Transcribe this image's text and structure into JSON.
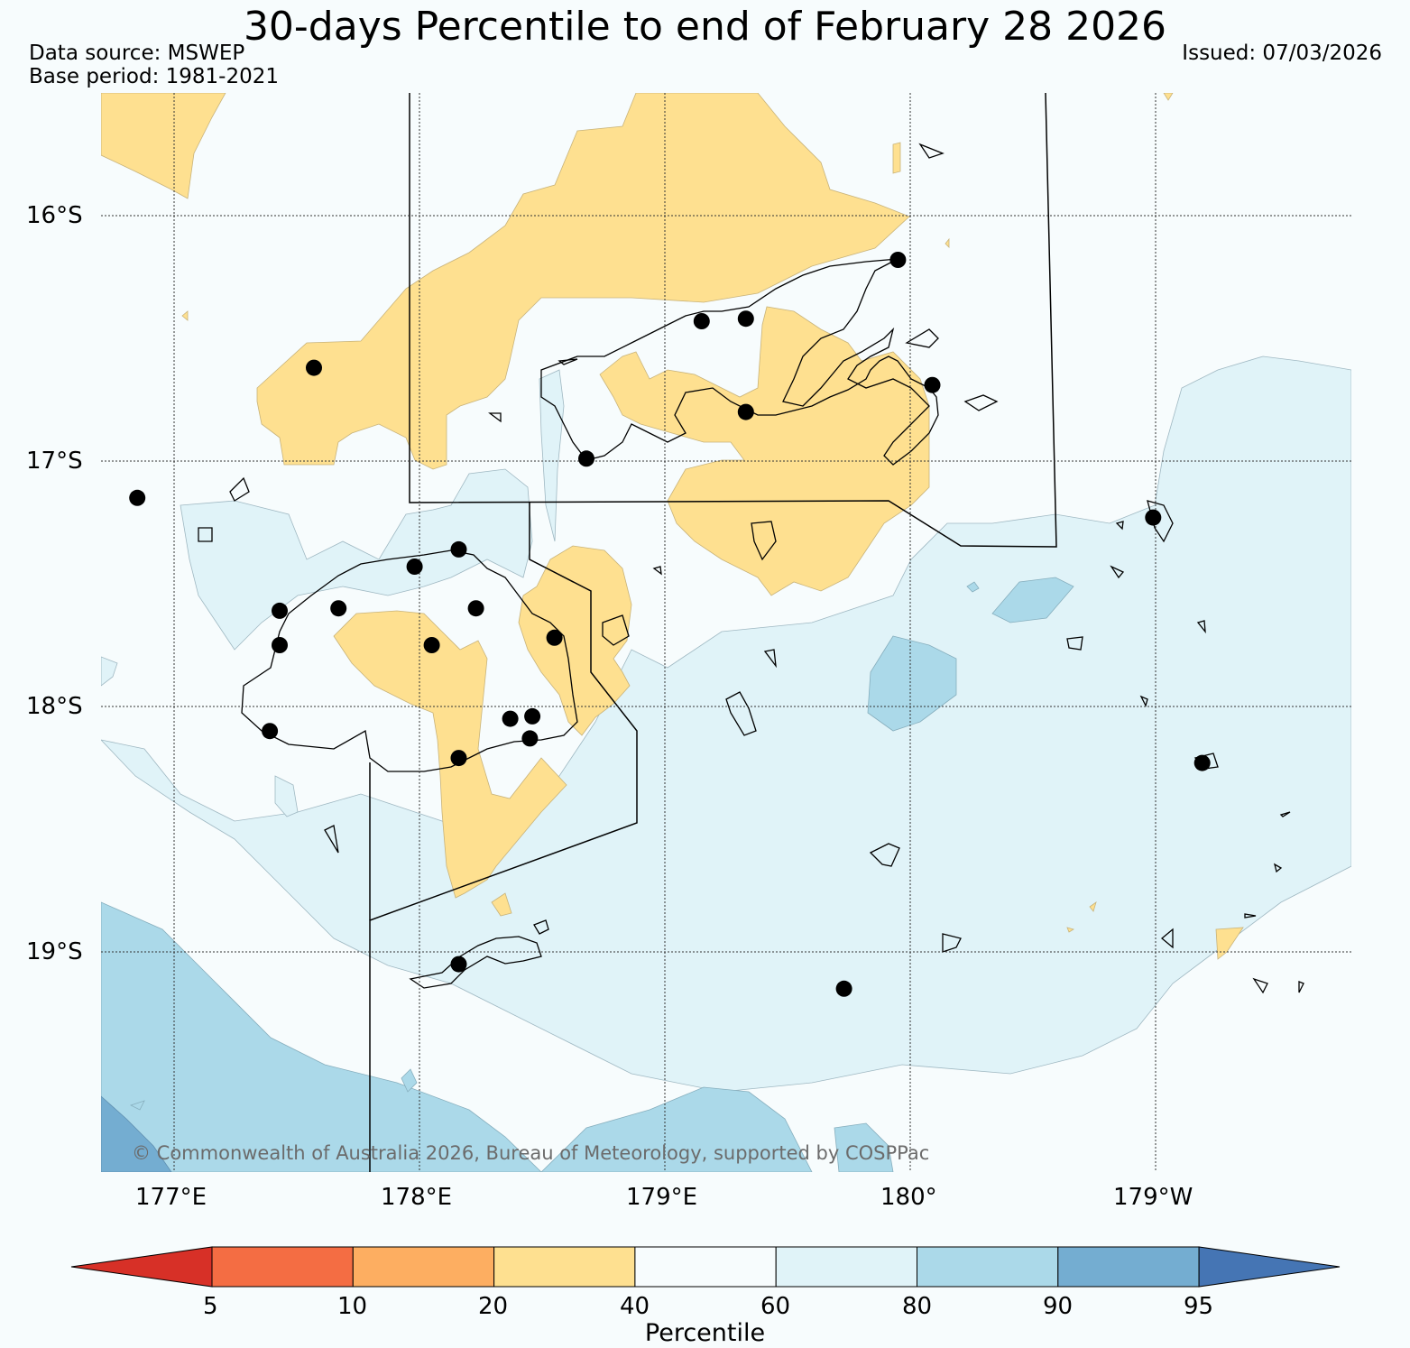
{
  "header": {
    "title": "30-days Percentile to end of February 28 2026",
    "data_source": "Data source: MSWEP",
    "base_period": "Base period: 1981-2021",
    "issued": "Issued: 07/03/2026"
  },
  "map": {
    "lat_labels": [
      "16°S",
      "17°S",
      "18°S",
      "19°S"
    ],
    "lon_labels": [
      "177°E",
      "178°E",
      "179°E",
      "180°",
      "179°W"
    ],
    "copyright": "© Commonwealth of Australia 2026, Bureau of Meteorology, supported by COSPPac",
    "stations": [
      {
        "lon": 177.57,
        "lat": -16.62
      },
      {
        "lon": 179.15,
        "lat": -16.43
      },
      {
        "lon": 179.33,
        "lat": -16.42
      },
      {
        "lon": 179.95,
        "lat": -16.18
      },
      {
        "lon": 179.33,
        "lat": -16.8
      },
      {
        "lon": 180.09,
        "lat": -16.69
      },
      {
        "lon": 178.68,
        "lat": -16.99
      },
      {
        "lon": 176.85,
        "lat": -17.15
      },
      {
        "lon": 178.16,
        "lat": -17.36
      },
      {
        "lon": 177.98,
        "lat": -17.43
      },
      {
        "lon": 177.43,
        "lat": -17.61
      },
      {
        "lon": 177.67,
        "lat": -17.6
      },
      {
        "lon": 178.23,
        "lat": -17.6
      },
      {
        "lon": 177.43,
        "lat": -17.75
      },
      {
        "lon": 178.05,
        "lat": -17.75
      },
      {
        "lon": 178.55,
        "lat": -17.72
      },
      {
        "lon": 177.39,
        "lat": -18.1
      },
      {
        "lon": 178.37,
        "lat": -18.05
      },
      {
        "lon": 178.46,
        "lat": -18.04
      },
      {
        "lon": 178.45,
        "lat": -18.13
      },
      {
        "lon": 178.16,
        "lat": -18.21
      },
      {
        "lon": 180.99,
        "lat": -17.23
      },
      {
        "lon": 181.19,
        "lat": -18.23
      },
      {
        "lon": 178.16,
        "lat": -19.05
      },
      {
        "lon": 179.73,
        "lat": -19.15
      }
    ]
  },
  "colorbar": {
    "label": "Percentile",
    "ticks": [
      "5",
      "10",
      "20",
      "40",
      "60",
      "80",
      "90",
      "95"
    ],
    "colors": [
      "#d73027",
      "#f46d43",
      "#fdae61",
      "#fee090",
      "#f7fcfd",
      "#e0f3f8",
      "#abd9e9",
      "#74add1",
      "#4575b4"
    ]
  }
}
